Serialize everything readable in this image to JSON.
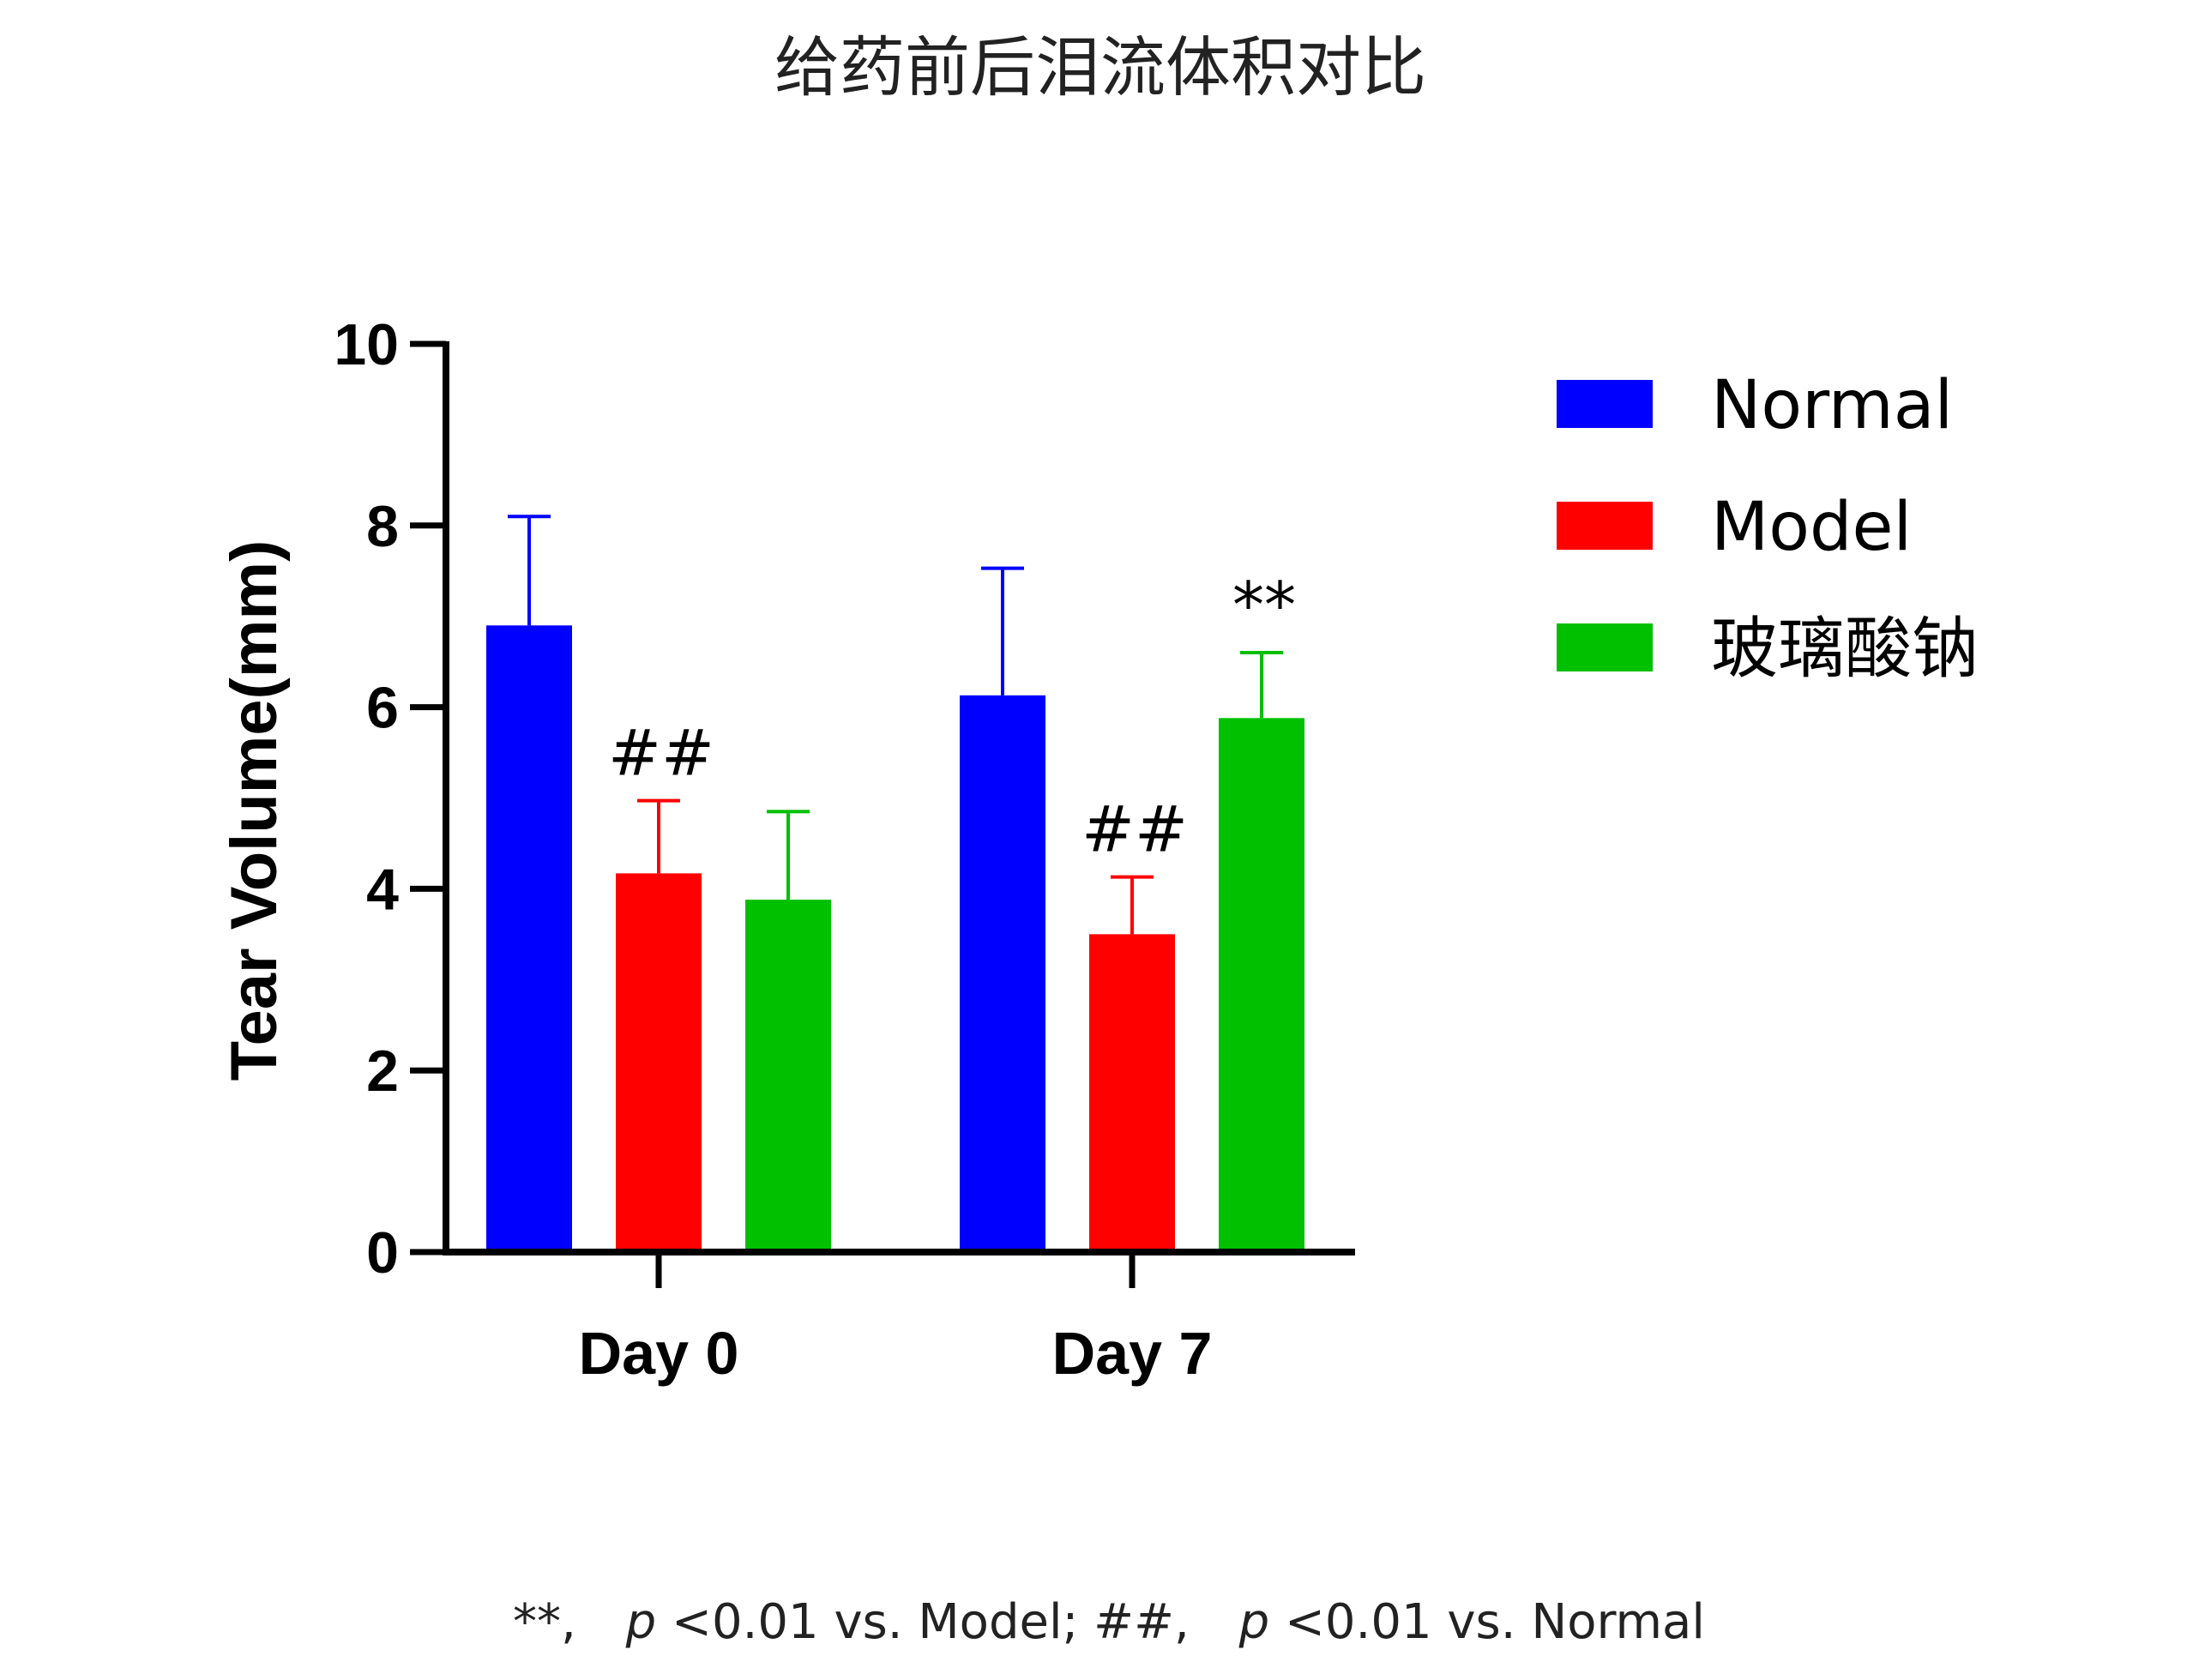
{
  "chart_data": {
    "type": "bar",
    "title": "给药前后泪流体积对比",
    "ylabel": "Tear Volume(mm)",
    "xlabel": "",
    "ylim": [
      0,
      10
    ],
    "yticks": [
      0,
      2,
      4,
      6,
      8,
      10
    ],
    "categories": [
      "Day 0",
      "Day 7"
    ],
    "series": [
      {
        "name": "Normal",
        "color": "#0000ff",
        "values": [
          6.9,
          6.13
        ],
        "errors": [
          1.2,
          1.4
        ]
      },
      {
        "name": "Model",
        "color": "#ff0000",
        "values": [
          4.17,
          3.5
        ],
        "errors": [
          0.8,
          0.63
        ]
      },
      {
        "name": "玻璃酸钠",
        "color": "#00c000",
        "values": [
          3.88,
          5.88
        ],
        "errors": [
          0.97,
          0.72
        ]
      }
    ],
    "annotations": [
      {
        "category": "Day 0",
        "series": "Model",
        "text": "##"
      },
      {
        "category": "Day 7",
        "series": "Model",
        "text": "##"
      },
      {
        "category": "Day 7",
        "series": "玻璃酸钠",
        "text": "**"
      }
    ],
    "legend_position": "right",
    "grid": false,
    "footnote": {
      "part1": "**,",
      "p1": "p",
      "part2": "<0.01 vs. Model; ##,",
      "p2": "p",
      "part3": "<0.01 vs. Normal"
    }
  }
}
